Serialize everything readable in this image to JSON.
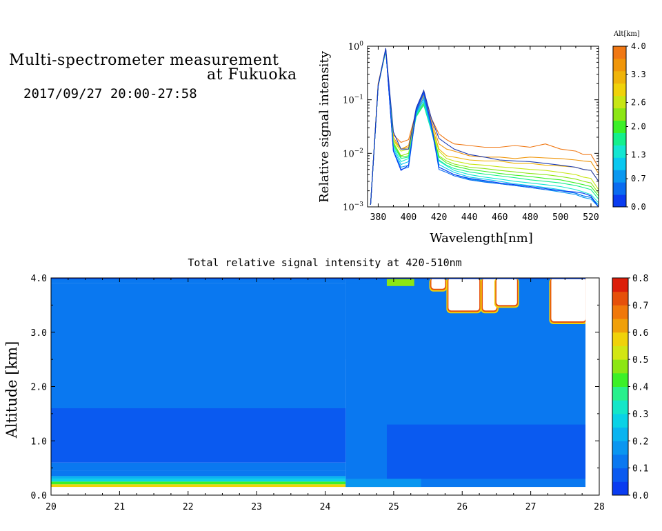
{
  "header": {
    "title_line1": "Multi-spectrometer measurement",
    "title_line2": "at Fukuoka",
    "datetime": "2017/09/27 20:00-27:58"
  },
  "colors": {
    "palette": [
      "#0a3cf0",
      "#0a64f0",
      "#0a8cf0",
      "#0ab4f0",
      "#14d2e6",
      "#14e6c8",
      "#14f078",
      "#50e628",
      "#96e614",
      "#d2e614",
      "#f0d20a",
      "#f0b40a",
      "#f08c0a",
      "#f0640a",
      "#e63c0a",
      "#dc1e0a"
    ],
    "contour_levels_note": ""
  },
  "chart_data": [
    {
      "type": "line",
      "title": "",
      "xlabel": "Wavelength[nm]",
      "ylabel": "Relative signal intensity",
      "xlim": [
        373,
        525
      ],
      "ylim": [
        0.001,
        1
      ],
      "yscale": "log",
      "x_ticks": [
        380,
        400,
        420,
        440,
        460,
        480,
        500,
        520
      ],
      "x_tick_labels": [
        "380",
        "400",
        "420",
        "440",
        "460",
        "480",
        "500",
        "520"
      ],
      "y_ticks": [
        0.001,
        0.01,
        0.1,
        1
      ],
      "y_tick_labels": [
        "10^-3",
        "10^-2",
        "10^-1",
        "10^0"
      ],
      "colorbar": {
        "label": "Alt[km]",
        "range": [
          0,
          4
        ],
        "tick_values": [
          0.0,
          0.7,
          1.3,
          2.0,
          2.6,
          3.3,
          4.0
        ],
        "tick_labels": [
          "0.0",
          "0.7",
          "1.3",
          "2.0",
          "2.6",
          "3.3",
          "4.0"
        ],
        "colors": [
          "#0a3cf0",
          "#0a6cf0",
          "#0a98f0",
          "#0ac8f0",
          "#14e6d2",
          "#14f08c",
          "#3cf028",
          "#8ce614",
          "#c8e614",
          "#f0d20a",
          "#f0b40a",
          "#f0960a",
          "#f07814"
        ]
      },
      "x": [
        375,
        380,
        385,
        390,
        395,
        400,
        405,
        410,
        415,
        420,
        425,
        430,
        440,
        450,
        460,
        470,
        480,
        490,
        500,
        510,
        515,
        520,
        525
      ],
      "series": [
        {
          "color": "#f07814",
          "values": [
            0.0011,
            0.2,
            0.85,
            0.022,
            0.016,
            0.018,
            0.06,
            0.13,
            0.045,
            0.023,
            0.018,
            0.015,
            0.014,
            0.013,
            0.013,
            0.014,
            0.013,
            0.015,
            0.012,
            0.011,
            0.0095,
            0.0095,
            0.0055
          ]
        },
        {
          "color": "#f0960a",
          "values": [
            0.0011,
            0.2,
            0.8,
            0.02,
            0.012,
            0.014,
            0.065,
            0.12,
            0.04,
            0.015,
            0.012,
            0.011,
            0.009,
            0.0085,
            0.0085,
            0.008,
            0.0085,
            0.0082,
            0.008,
            0.0075,
            0.0072,
            0.007,
            0.0042
          ]
        },
        {
          "color": "#f0b40a",
          "values": [
            0.0011,
            0.19,
            0.8,
            0.018,
            0.012,
            0.013,
            0.06,
            0.11,
            0.035,
            0.012,
            0.009,
            0.0085,
            0.0075,
            0.0072,
            0.0072,
            0.0065,
            0.0065,
            0.006,
            0.0058,
            0.0055,
            0.005,
            0.0048,
            0.003
          ]
        },
        {
          "color": "#c8e614",
          "values": [
            0.0011,
            0.18,
            0.82,
            0.017,
            0.011,
            0.012,
            0.055,
            0.09,
            0.032,
            0.011,
            0.008,
            0.0072,
            0.0063,
            0.006,
            0.0056,
            0.0053,
            0.005,
            0.0048,
            0.0044,
            0.004,
            0.0036,
            0.0034,
            0.0021
          ]
        },
        {
          "color": "#8ce614",
          "values": [
            0.0011,
            0.18,
            0.83,
            0.016,
            0.009,
            0.01,
            0.05,
            0.085,
            0.03,
            0.009,
            0.0072,
            0.0063,
            0.0055,
            0.0052,
            0.0048,
            0.0045,
            0.0042,
            0.004,
            0.0037,
            0.0033,
            0.003,
            0.0028,
            0.0018
          ]
        },
        {
          "color": "#3cf028",
          "values": [
            0.0011,
            0.18,
            0.83,
            0.015,
            0.0085,
            0.009,
            0.05,
            0.08,
            0.028,
            0.0085,
            0.0066,
            0.0058,
            0.005,
            0.0046,
            0.0042,
            0.0039,
            0.0037,
            0.0034,
            0.0032,
            0.0028,
            0.0026,
            0.0024,
            0.0016
          ]
        },
        {
          "color": "#14f08c",
          "values": [
            0.0011,
            0.18,
            0.84,
            0.014,
            0.008,
            0.0085,
            0.048,
            0.08,
            0.026,
            0.0075,
            0.006,
            0.0052,
            0.0045,
            0.0041,
            0.0038,
            0.0035,
            0.0032,
            0.003,
            0.0028,
            0.0025,
            0.0023,
            0.0021,
            0.0014
          ]
        },
        {
          "color": "#14e6d2",
          "values": [
            0.0011,
            0.18,
            0.85,
            0.013,
            0.007,
            0.008,
            0.052,
            0.09,
            0.027,
            0.0072,
            0.0058,
            0.0048,
            0.004,
            0.0036,
            0.0033,
            0.003,
            0.0028,
            0.0026,
            0.0024,
            0.0021,
            0.0019,
            0.0017,
            0.0012
          ]
        },
        {
          "color": "#0ac8f0",
          "values": [
            0.0011,
            0.18,
            0.86,
            0.012,
            0.0062,
            0.007,
            0.055,
            0.1,
            0.028,
            0.0062,
            0.0052,
            0.0044,
            0.0036,
            0.0033,
            0.003,
            0.0027,
            0.0025,
            0.0023,
            0.0021,
            0.0018,
            0.0016,
            0.0015,
            0.0011
          ]
        },
        {
          "color": "#0a98f0",
          "values": [
            0.0011,
            0.18,
            0.87,
            0.011,
            0.0055,
            0.006,
            0.058,
            0.11,
            0.03,
            0.0055,
            0.0047,
            0.004,
            0.0033,
            0.003,
            0.0027,
            0.0025,
            0.0023,
            0.0021,
            0.0019,
            0.0017,
            0.0015,
            0.0014,
            0.001
          ]
        },
        {
          "color": "#0a6cf0",
          "values": [
            0.0011,
            0.18,
            0.88,
            0.011,
            0.005,
            0.0055,
            0.06,
            0.13,
            0.032,
            0.005,
            0.0044,
            0.0038,
            0.0032,
            0.0029,
            0.0027,
            0.0025,
            0.0023,
            0.0021,
            0.002,
            0.0018,
            0.0016,
            0.0015,
            0.001
          ]
        },
        {
          "color": "#0a3cf0",
          "values": [
            0.0011,
            0.18,
            0.9,
            0.011,
            0.0048,
            0.006,
            0.065,
            0.14,
            0.035,
            0.0055,
            0.0047,
            0.004,
            0.0034,
            0.0031,
            0.0028,
            0.0026,
            0.0024,
            0.0022,
            0.002,
            0.0019,
            0.0018,
            0.0016,
            0.001
          ]
        },
        {
          "color": "#1e3cb4",
          "values": [
            0.0011,
            0.19,
            0.92,
            0.025,
            0.012,
            0.012,
            0.07,
            0.15,
            0.045,
            0.019,
            0.015,
            0.012,
            0.0095,
            0.0085,
            0.0075,
            0.0072,
            0.007,
            0.0065,
            0.006,
            0.0055,
            0.005,
            0.0048,
            0.003
          ]
        }
      ]
    },
    {
      "type": "heatmap",
      "title": "Total relative signal intensity at 420-510nm",
      "xlabel": "",
      "ylabel": "Altitude [km]",
      "xlim": [
        20,
        28
      ],
      "ylim": [
        0,
        4
      ],
      "x_ticks": [
        20,
        21,
        22,
        23,
        24,
        25,
        26,
        27,
        28
      ],
      "x_tick_labels": [
        "20",
        "21",
        "22",
        "23",
        "24",
        "25",
        "26",
        "27",
        "28"
      ],
      "y_ticks": [
        0,
        1,
        2,
        3,
        4
      ],
      "y_tick_labels": [
        "0.0",
        "1.0",
        "2.0",
        "3.0",
        "4.0"
      ],
      "colorbar": {
        "range": [
          0,
          0.8
        ],
        "tick_values": [
          0,
          0.1,
          0.2,
          0.3,
          0.4,
          0.5,
          0.6,
          0.7,
          0.8
        ],
        "tick_labels": [
          "0.0",
          "0.1",
          "0.2",
          "0.3",
          "0.4",
          "0.5",
          "0.6",
          "0.7",
          "0.8"
        ]
      },
      "time_range_data": [
        20.0,
        27.8
      ],
      "altitude_range_data": [
        0.15,
        4.0
      ],
      "bands_before_24_3": [
        {
          "alt": [
            0.15,
            0.2
          ],
          "value": 0.55
        },
        {
          "alt": [
            0.2,
            0.25
          ],
          "value": 0.42
        },
        {
          "alt": [
            0.25,
            0.3
          ],
          "value": 0.3
        },
        {
          "alt": [
            0.3,
            0.35
          ],
          "value": 0.22
        },
        {
          "alt": [
            0.35,
            0.45
          ],
          "value": 0.13
        },
        {
          "alt": [
            0.45,
            0.6
          ],
          "value": 0.1
        },
        {
          "alt": [
            0.6,
            1.6
          ],
          "value": 0.07
        },
        {
          "alt": [
            1.6,
            2.4
          ],
          "value": 0.1
        },
        {
          "alt": [
            2.4,
            3.9
          ],
          "value": 0.12
        },
        {
          "alt": [
            3.9,
            4.0
          ],
          "value": 0.15
        }
      ],
      "after_24_3": {
        "low_layer_alt": [
          0.3,
          1.3
        ],
        "low_layer_value": 0.06,
        "mid_layer_value": 0.1,
        "upper_layer_value": 0.14,
        "cloud_top_patches": [
          {
            "time": [
              24.9,
              25.3
            ],
            "alt": [
              3.85,
              4.0
            ],
            "value": 0.45
          },
          {
            "time": [
              25.55,
              25.75
            ],
            "alt": [
              3.8,
              4.0
            ],
            "value": 0.8
          },
          {
            "time": [
              25.8,
              26.25
            ],
            "alt": [
              3.4,
              4.0
            ],
            "value": 0.8
          },
          {
            "time": [
              26.3,
              26.5
            ],
            "alt": [
              3.4,
              4.0
            ],
            "value": 0.8
          },
          {
            "time": [
              26.5,
              26.8
            ],
            "alt": [
              3.5,
              4.0
            ],
            "value": 0.8
          },
          {
            "time": [
              27.3,
              27.8
            ],
            "alt": [
              3.2,
              4.0
            ],
            "value": 0.8
          }
        ]
      }
    }
  ]
}
